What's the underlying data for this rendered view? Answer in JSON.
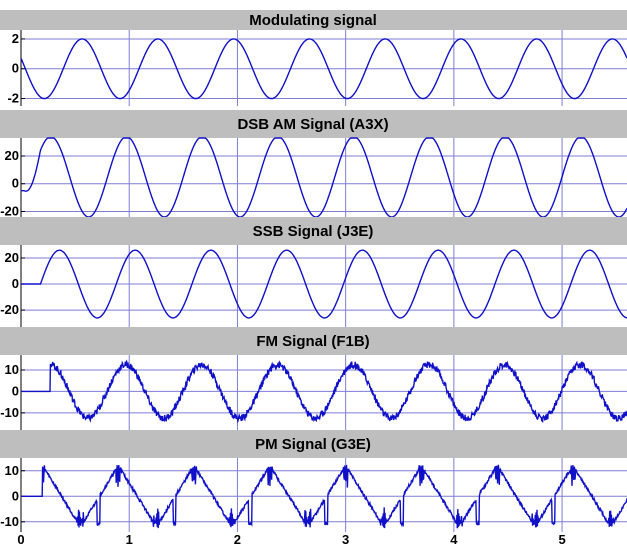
{
  "chart_data": [
    {
      "type": "line",
      "title": "Modulating signal",
      "xlim": [
        0,
        5.6
      ],
      "ylim": [
        -2.5,
        2.6
      ],
      "yticks": [
        "2",
        "0",
        "-2"
      ],
      "ytick_values": [
        2,
        0,
        -2
      ],
      "series": [
        {
          "shape": "sine",
          "amplitude": 2.0,
          "period_s": 0.7,
          "phase": "cosine",
          "start_s": 0
        }
      ]
    },
    {
      "type": "line",
      "title": "DSB AM Signal (A3X)",
      "xlim": [
        0,
        5.6
      ],
      "ylim": [
        -24,
        33
      ],
      "yticks": [
        "20",
        "0",
        "-20"
      ],
      "ytick_values": [
        20,
        0,
        -20
      ],
      "series": [
        {
          "shape": "sine",
          "amplitude": 29,
          "offset": 5,
          "period_s": 0.7,
          "start_s": 0.03,
          "start_value": -5
        }
      ]
    },
    {
      "type": "line",
      "title": "SSB Signal (J3E)",
      "xlim": [
        0,
        5.6
      ],
      "ylim": [
        -33,
        30
      ],
      "yticks": [
        "20",
        "0",
        "-20"
      ],
      "ytick_values": [
        20,
        0,
        -20
      ],
      "series": [
        {
          "shape": "sine",
          "amplitude": 26,
          "period_s": 0.7,
          "start_s": 0.18,
          "before_start_value": 0
        }
      ]
    },
    {
      "type": "line",
      "title": "FM Signal (F1B)",
      "xlim": [
        0,
        5.6
      ],
      "ylim": [
        -18,
        17
      ],
      "yticks": [
        "10",
        "0",
        "-10"
      ],
      "ytick_values": [
        10,
        0,
        -10
      ],
      "series": [
        {
          "shape": "noisy-sine",
          "amplitude": 12.5,
          "period_s": 0.7,
          "start_s": 0.27,
          "before_start_value": 0
        }
      ]
    },
    {
      "type": "line",
      "title": "PM Signal (G3E)",
      "xlim": [
        0,
        5.6
      ],
      "ylim": [
        -14,
        15
      ],
      "yticks": [
        "10",
        "0",
        "-10"
      ],
      "ytick_values": [
        10,
        0,
        -10
      ],
      "xticks": [
        "0",
        "1",
        "2",
        "3",
        "4",
        "5"
      ],
      "xtick_values": [
        0,
        1,
        2,
        3,
        4,
        5
      ],
      "series": [
        {
          "shape": "spiky-triangle",
          "amplitude": 12,
          "period_s": 0.7,
          "start_s": 0.2,
          "before_start_value": 0
        }
      ]
    }
  ],
  "colors": {
    "background": "#ffffff",
    "title_bar": "#bebebe",
    "grid": "#7d7dd6",
    "line": "#1010c8",
    "text": "#000000"
  }
}
